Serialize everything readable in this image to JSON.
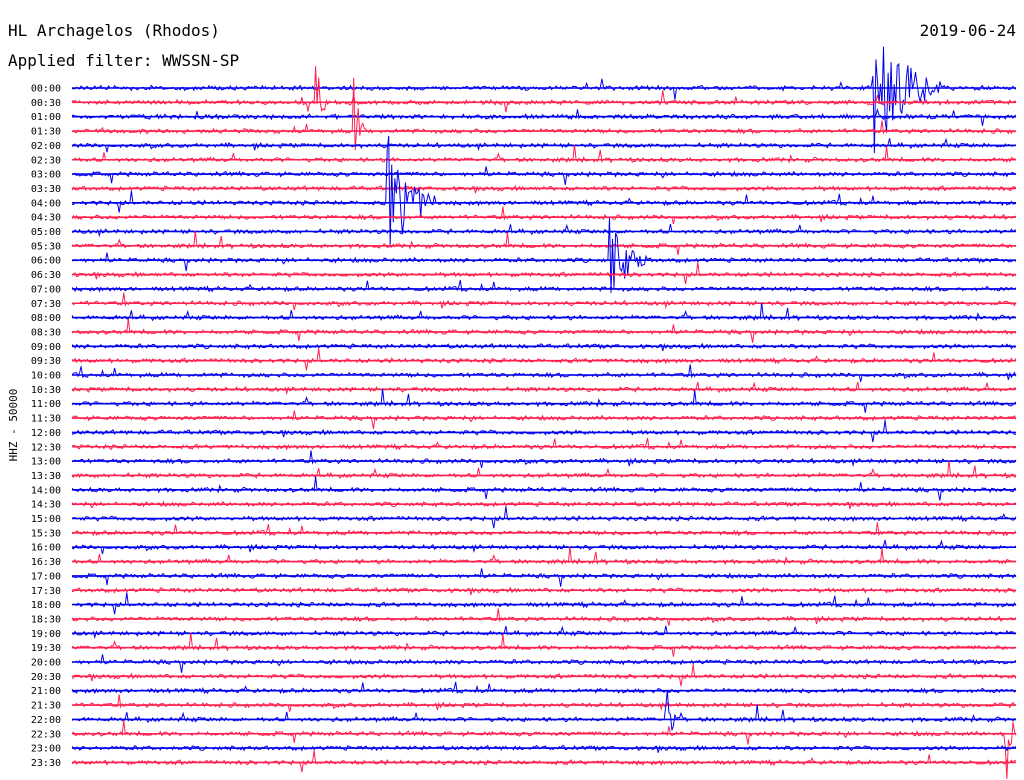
{
  "chart_data": {
    "type": "line",
    "title": "HL Archagelos (Rhodos)",
    "subtitle": "Applied filter: WWSSN-SP",
    "date": "2019-06-24",
    "ylabel": "HHZ - 50000",
    "series_colors": [
      "#0000ee",
      "#ff2050"
    ],
    "row_labels": [
      "00:00",
      "00:30",
      "01:00",
      "01:30",
      "02:00",
      "02:30",
      "03:00",
      "03:30",
      "04:00",
      "04:30",
      "05:00",
      "05:30",
      "06:00",
      "06:30",
      "07:00",
      "07:30",
      "08:00",
      "08:30",
      "09:00",
      "09:30",
      "10:00",
      "10:30",
      "11:00",
      "11:30",
      "12:00",
      "12:30",
      "13:00",
      "13:30",
      "14:00",
      "14:30",
      "15:00",
      "15:30",
      "16:00",
      "16:30",
      "17:00",
      "17:30",
      "18:00",
      "18:30",
      "19:00",
      "19:30",
      "20:00",
      "20:30",
      "21:00",
      "21:30",
      "22:00",
      "22:30",
      "23:00",
      "23:30"
    ],
    "events": [
      {
        "row": 0,
        "x": 0.85,
        "amp": 1.0,
        "dur": 0.07
      },
      {
        "row": 8,
        "x": 0.335,
        "amp": 1.0,
        "dur": 0.05
      },
      {
        "row": 12,
        "x": 0.57,
        "amp": 0.6,
        "dur": 0.04
      },
      {
        "row": 3,
        "x": 0.3,
        "amp": 0.6,
        "dur": 0.01
      },
      {
        "row": 1,
        "x": 0.26,
        "amp": 0.5,
        "dur": 0.01
      },
      {
        "row": 45,
        "x": 0.99,
        "amp": 0.8,
        "dur": 0.01
      },
      {
        "row": 44,
        "x": 0.63,
        "amp": 0.5,
        "dur": 0.01
      }
    ]
  }
}
